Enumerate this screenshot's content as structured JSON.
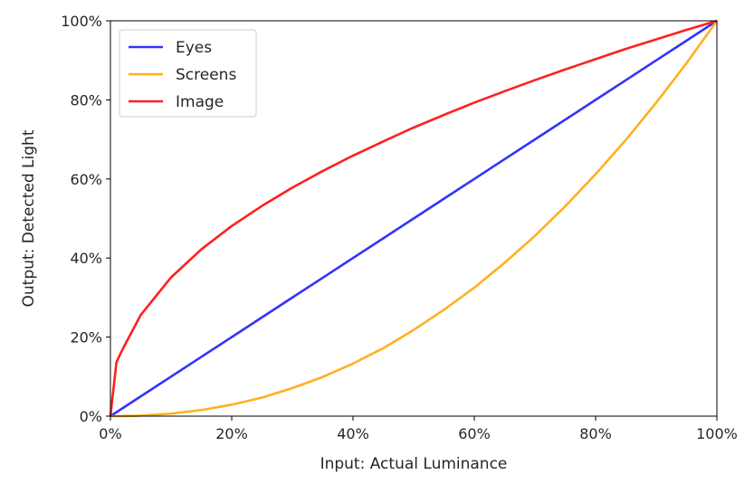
{
  "chart_data": {
    "type": "line",
    "xlabel": "Input: Actual Luminance",
    "ylabel": "Output: Detected Light",
    "xlim": [
      0,
      1
    ],
    "ylim": [
      0,
      1
    ],
    "x_ticks": [
      0,
      0.2,
      0.4,
      0.6,
      0.8,
      1.0
    ],
    "y_ticks": [
      0,
      0.2,
      0.4,
      0.6,
      0.8,
      1.0
    ],
    "x_tick_labels": [
      "0%",
      "20%",
      "40%",
      "60%",
      "80%",
      "100%"
    ],
    "y_tick_labels": [
      "0%",
      "20%",
      "40%",
      "60%",
      "80%",
      "100%"
    ],
    "grid": false,
    "legend_position": "top-left",
    "x": [
      0,
      0.01,
      0.02,
      0.05,
      0.1,
      0.15,
      0.2,
      0.25,
      0.3,
      0.35,
      0.4,
      0.45,
      0.5,
      0.55,
      0.6,
      0.65,
      0.7,
      0.75,
      0.8,
      0.85,
      0.9,
      0.95,
      1.0
    ],
    "series": [
      {
        "name": "Eyes",
        "color": "#3333ff",
        "values": [
          0,
          0.01,
          0.02,
          0.05,
          0.1,
          0.15,
          0.2,
          0.25,
          0.3,
          0.35,
          0.4,
          0.45,
          0.5,
          0.55,
          0.6,
          0.65,
          0.7,
          0.75,
          0.8,
          0.85,
          0.9,
          0.95,
          1.0
        ]
      },
      {
        "name": "Screens",
        "color": "#ffb020",
        "values": [
          0,
          0.0,
          0.0002,
          0.0014,
          0.0063,
          0.0154,
          0.029,
          0.047,
          0.071,
          0.099,
          0.133,
          0.172,
          0.218,
          0.269,
          0.325,
          0.388,
          0.456,
          0.531,
          0.612,
          0.699,
          0.793,
          0.893,
          1.0
        ]
      },
      {
        "name": "Image",
        "color": "#ff2020",
        "values": [
          0,
          0.137,
          0.169,
          0.256,
          0.351,
          0.422,
          0.481,
          0.532,
          0.578,
          0.62,
          0.659,
          0.695,
          0.73,
          0.762,
          0.793,
          0.822,
          0.85,
          0.877,
          0.903,
          0.929,
          0.953,
          0.977,
          1.0
        ]
      }
    ]
  }
}
